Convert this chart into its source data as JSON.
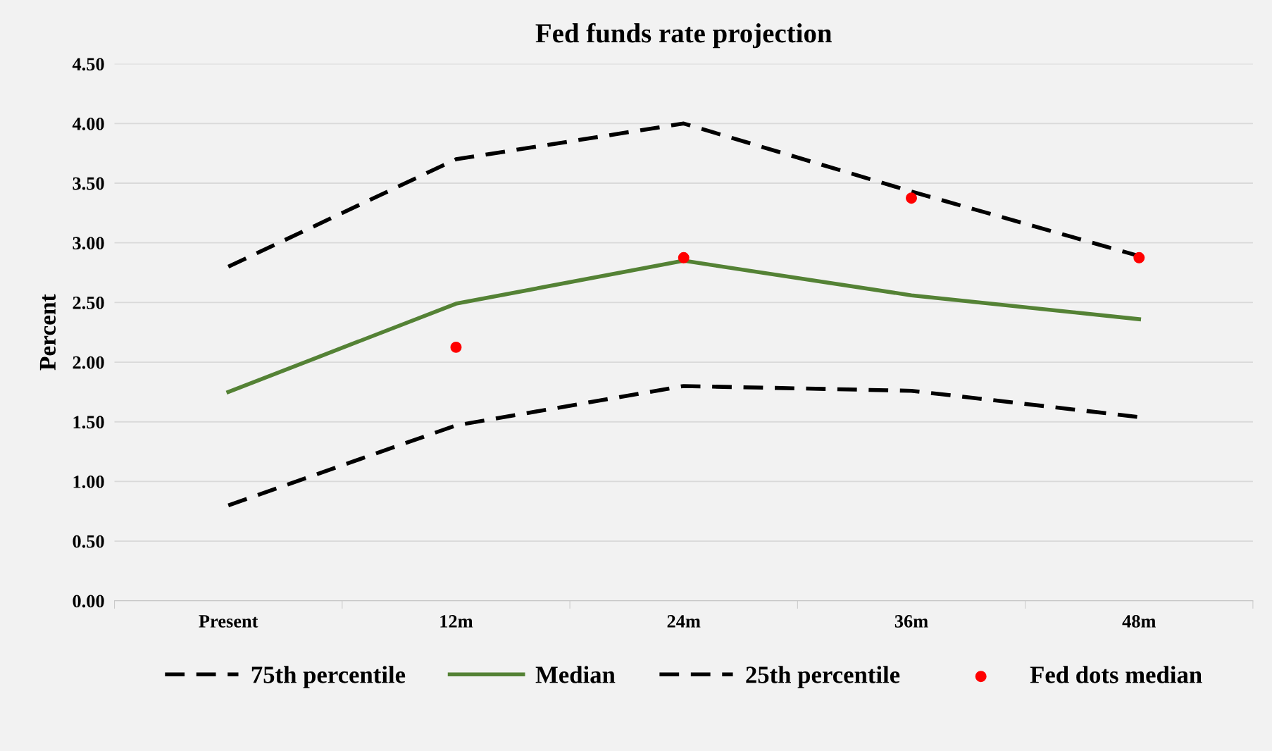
{
  "chart_data": {
    "type": "line",
    "title": "Fed funds rate projection",
    "ylabel": "Percent",
    "categories": [
      "Present",
      "12m",
      "24m",
      "36m",
      "48m"
    ],
    "series": [
      {
        "name": "75th percentile",
        "color": "#000000",
        "line_style": "dashed",
        "values": [
          2.8,
          3.7,
          4.0,
          3.43,
          2.89
        ]
      },
      {
        "name": "Median",
        "color": "#548235",
        "line_style": "solid",
        "values": [
          1.75,
          2.49,
          2.85,
          2.56,
          2.36
        ]
      },
      {
        "name": "25th percentile",
        "color": "#000000",
        "line_style": "dashed",
        "values": [
          0.8,
          1.47,
          1.8,
          1.76,
          1.54
        ]
      },
      {
        "name": "Fed dots median",
        "type": "scatter",
        "marker": "circle",
        "color": "#ff0000",
        "values": [
          null,
          2.125,
          2.875,
          3.375,
          2.875
        ]
      }
    ],
    "ylim": [
      0,
      4.5
    ],
    "yticks": [
      {
        "value": 0,
        "label": "0.00"
      },
      {
        "value": 0.5,
        "label": "0.50"
      },
      {
        "value": 1,
        "label": "1.00"
      },
      {
        "value": 1.5,
        "label": "1.50"
      },
      {
        "value": 2,
        "label": "2.00"
      },
      {
        "value": 2.5,
        "label": "2.50"
      },
      {
        "value": 3,
        "label": "3.00"
      },
      {
        "value": 3.5,
        "label": "3.50"
      },
      {
        "value": 4,
        "label": "4.00"
      },
      {
        "value": 4.5,
        "label": "4.50"
      }
    ],
    "grid": "y",
    "legend": "bottom",
    "marker": "none"
  }
}
